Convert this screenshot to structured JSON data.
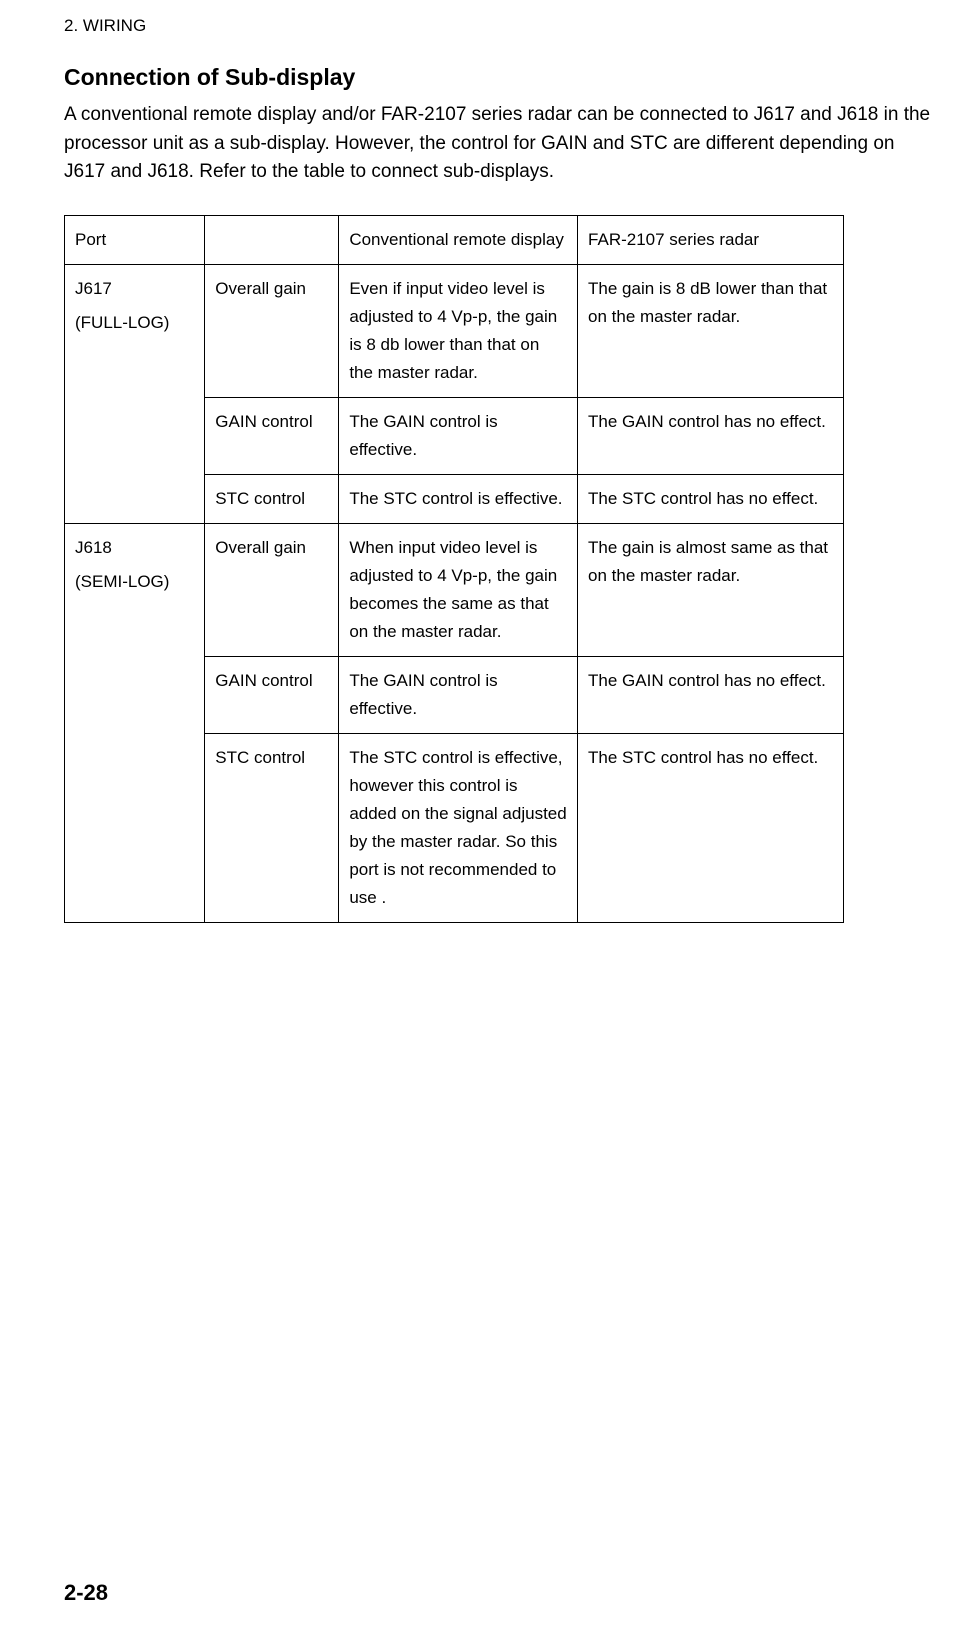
{
  "chapter": "2. WIRING",
  "section_title": "Connection of Sub-display",
  "intro": "A conventional remote display and/or FAR-2107 series radar can be connected to J617 and J618 in the processor unit as a sub-display. However, the control for GAIN and STC are different depending on J617 and J618. Refer to the table to connect sub-displays.",
  "table": {
    "header": {
      "port": "Port",
      "param": "",
      "conv": "Conventional remote display",
      "far": "FAR-2107 series radar"
    },
    "groups": [
      {
        "port_main": "J617",
        "port_sub": "(FULL-LOG)",
        "rows": [
          {
            "param": "Overall gain",
            "conv": "Even if input video level is adjusted to 4 Vp-p, the gain is 8 db lower than that on the master radar.",
            "far": "The gain is 8 dB lower than that on the master radar."
          },
          {
            "param": "GAIN control",
            "conv": "The GAIN control is effective.",
            "far": "The GAIN control has no effect."
          },
          {
            "param": "STC control",
            "conv": "The STC control is effective.",
            "far": "The STC control has no effect."
          }
        ]
      },
      {
        "port_main": "J618",
        "port_sub": "(SEMI-LOG)",
        "rows": [
          {
            "param": "Overall gain",
            "conv": "When input video level is adjusted to 4 Vp-p, the gain becomes the same as that on the master radar.",
            "far": "The gain is almost same as that on the master radar."
          },
          {
            "param": "GAIN control",
            "conv": "The GAIN control is effective.",
            "far": "The GAIN control has no effect."
          },
          {
            "param": "STC control",
            "conv": "The STC control is effective, however this control is added on the signal adjusted by the master radar. So this port is not recommended to use .",
            "far": "The STC control has no effect."
          }
        ]
      }
    ]
  },
  "page_number": "2-28"
}
